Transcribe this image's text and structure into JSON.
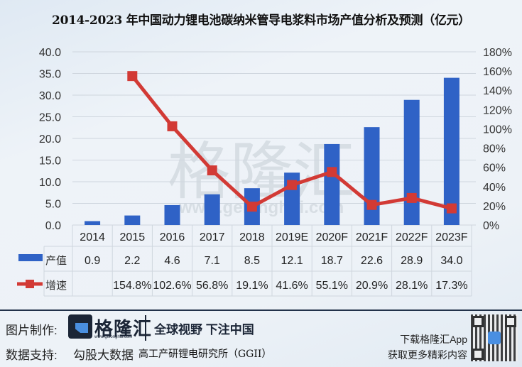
{
  "title": "2014-2023 年中国动力锂电池碳纳米管导电浆料市场产值分析及预测（亿元）",
  "chart_data": {
    "type": "bar+line",
    "title": "2014-2023 年中国动力锂电池碳纳米管导电浆料市场产值分析及预测（亿元）",
    "categories": [
      "2014",
      "2015",
      "2016",
      "2017",
      "2018",
      "2019E",
      "2020F",
      "2021F",
      "2022F",
      "2023F"
    ],
    "series": [
      {
        "name": "产值",
        "type": "bar",
        "axis": "left",
        "color": "#2f62c6",
        "values": [
          0.9,
          2.2,
          4.6,
          7.1,
          8.5,
          12.1,
          18.7,
          22.6,
          28.9,
          34.0
        ],
        "labels": [
          "0.9",
          "2.2",
          "4.6",
          "7.1",
          "8.5",
          "12.1",
          "18.7",
          "22.6",
          "28.9",
          "34.0"
        ]
      },
      {
        "name": "增速",
        "type": "line",
        "axis": "right",
        "color": "#d23a35",
        "values": [
          null,
          154.8,
          102.6,
          56.8,
          19.1,
          41.6,
          55.1,
          20.9,
          28.1,
          17.3
        ],
        "labels": [
          "",
          "154.8%",
          "102.6%",
          "56.8%",
          "19.1%",
          "41.6%",
          "55.1%",
          "20.9%",
          "28.1%",
          "17.3%"
        ]
      }
    ],
    "y_left": {
      "ticks": [
        "0.0",
        "5.0",
        "10.0",
        "15.0",
        "20.0",
        "25.0",
        "30.0",
        "35.0",
        "40.0"
      ],
      "ylim": [
        0,
        40
      ]
    },
    "y_right": {
      "ticks": [
        "0%",
        "20%",
        "40%",
        "60%",
        "80%",
        "100%",
        "120%",
        "140%",
        "160%",
        "180%"
      ],
      "ylim": [
        0,
        180
      ]
    },
    "grid": true,
    "legend_position": "data-table-below"
  },
  "watermark": {
    "text": "格隆汇",
    "url": "www.gelonghui.com"
  },
  "footer": {
    "made_by_label": "图片制作:",
    "brand": "格隆汇",
    "brand_url": "www.gelonghui.com",
    "slogan": "全球视野 下注中国",
    "data_support_label": "数据支持:",
    "data_support_1": "勾股大数据",
    "data_support_2": "高工产研锂电研究所（GGII）",
    "download_line1": "下载格隆汇App",
    "download_line2": "获取更多精彩内容"
  }
}
